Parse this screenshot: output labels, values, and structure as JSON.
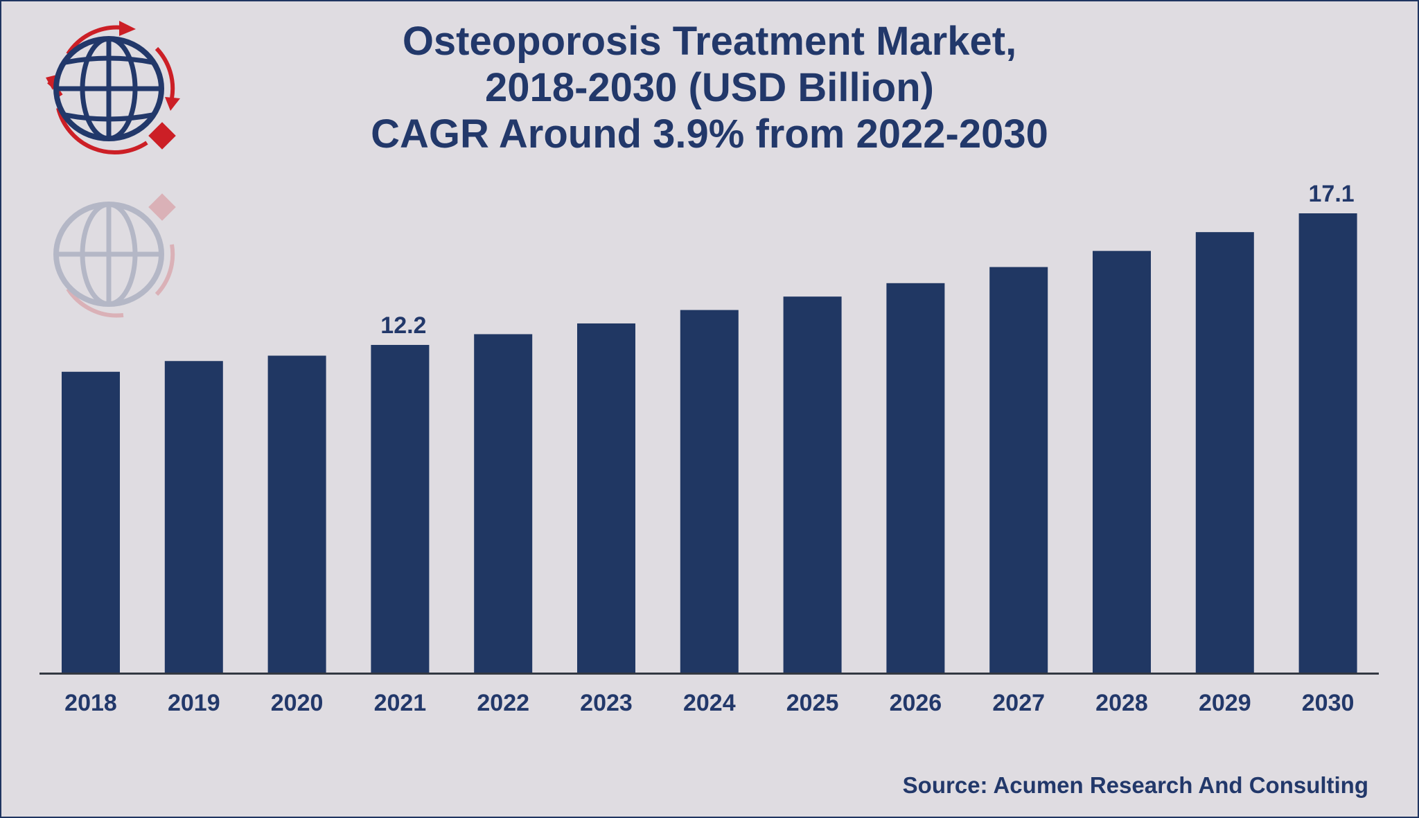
{
  "colors": {
    "bar": "#203763",
    "text": "#22386a",
    "accent_red": "#cc1f26",
    "background": "#dfdce1"
  },
  "logo": {
    "icon": "globe-logo-icon"
  },
  "source": "Source: Acumen Research And Consulting",
  "chart_data": {
    "type": "bar",
    "title": [
      "Osteoporosis Treatment Market,",
      "2018-2030 (USD Billion)",
      "CAGR Around 3.9% from 2022-2030"
    ],
    "xlabel": "",
    "ylabel": "",
    "categories": [
      "2018",
      "2019",
      "2020",
      "2021",
      "2022",
      "2023",
      "2024",
      "2025",
      "2026",
      "2027",
      "2028",
      "2029",
      "2030"
    ],
    "values": [
      11.2,
      11.6,
      11.8,
      12.2,
      12.6,
      13.0,
      13.5,
      14.0,
      14.5,
      15.1,
      15.7,
      16.4,
      17.1
    ],
    "data_labels": [
      {
        "category": "2021",
        "text": "12.2"
      },
      {
        "category": "2030",
        "text": "17.1"
      }
    ],
    "ylim": [
      0,
      17.1
    ],
    "grid": false,
    "legend": "none"
  }
}
